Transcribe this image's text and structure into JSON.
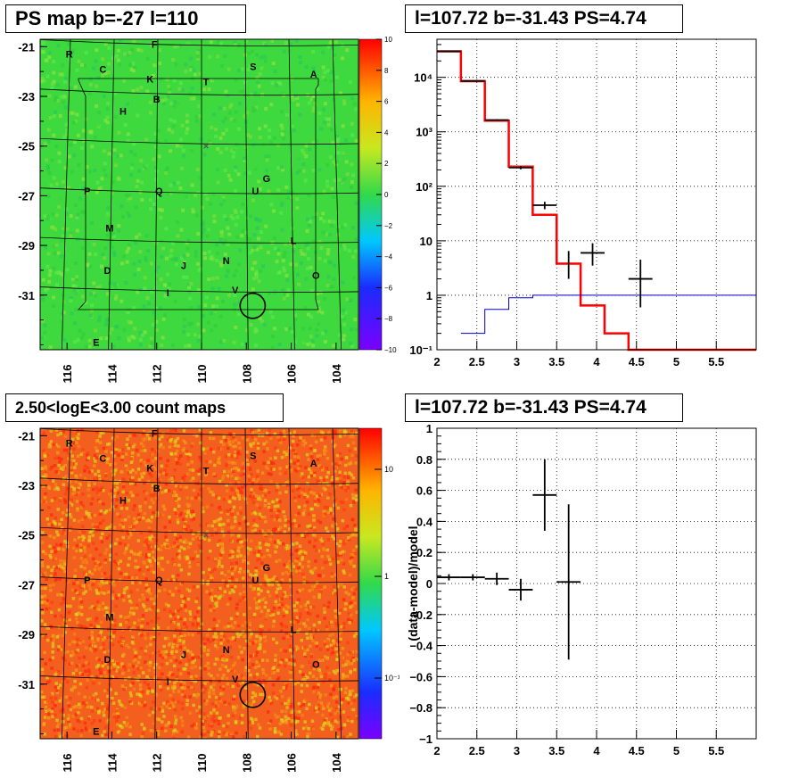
{
  "panels": {
    "ps_map": {
      "title": "PS map b=-27 l=110",
      "y_ticks": [
        "-21",
        "-23",
        "-25",
        "-27",
        "-29",
        "-31"
      ],
      "x_ticks": [
        "116",
        "114",
        "112",
        "110",
        "108",
        "106",
        "104"
      ],
      "colorbar_ticks": [
        "10",
        "8",
        "6",
        "4",
        "2",
        "0",
        "−2",
        "−4",
        "−6",
        "−8",
        "−10"
      ],
      "colors": {
        "background": "#3ed93e",
        "frame": "#000000"
      }
    },
    "count_map": {
      "title": "2.50<logE<3.00 count maps",
      "y_ticks": [
        "-21",
        "-23",
        "-25",
        "-27",
        "-29",
        "-31"
      ],
      "x_ticks": [
        "116",
        "114",
        "112",
        "110",
        "108",
        "106",
        "104"
      ],
      "colorbar_ticks": [
        "10",
        "1",
        "10⁻¹"
      ],
      "colors": {
        "background": "#f25f1e"
      }
    },
    "spectrum": {
      "title": "l=107.72 b=-31.43 PS=4.74"
    },
    "residual": {
      "title": "l=107.72 b=-31.43 PS=4.74",
      "ylabel": "(data-model)/model"
    }
  },
  "source_labels": [
    {
      "t": "R",
      "lon": 115.9,
      "lat": -21.3
    },
    {
      "t": "F",
      "lon": 112.1,
      "lat": -20.9
    },
    {
      "t": "C",
      "lon": 114.4,
      "lat": -21.9
    },
    {
      "t": "K",
      "lon": 112.3,
      "lat": -22.3
    },
    {
      "t": "T",
      "lon": 109.8,
      "lat": -22.4
    },
    {
      "t": "S",
      "lon": 107.7,
      "lat": -21.8
    },
    {
      "t": "A",
      "lon": 105.0,
      "lat": -22.1
    },
    {
      "t": "B",
      "lon": 112.0,
      "lat": -23.1
    },
    {
      "t": "H",
      "lon": 113.5,
      "lat": -23.6
    },
    {
      "t": "×",
      "lon": 109.8,
      "lat": -25.0
    },
    {
      "t": "G",
      "lon": 107.1,
      "lat": -26.3
    },
    {
      "t": "P",
      "lon": 115.1,
      "lat": -26.8
    },
    {
      "t": "Q",
      "lon": 111.9,
      "lat": -26.8
    },
    {
      "t": "U",
      "lon": 107.6,
      "lat": -26.8
    },
    {
      "t": "M",
      "lon": 114.1,
      "lat": -28.3
    },
    {
      "t": "L",
      "lon": 105.9,
      "lat": -28.8
    },
    {
      "t": "J",
      "lon": 110.8,
      "lat": -29.8
    },
    {
      "t": "N",
      "lon": 108.9,
      "lat": -29.6
    },
    {
      "t": "D",
      "lon": 114.2,
      "lat": -30.0
    },
    {
      "t": "O",
      "lon": 104.9,
      "lat": -30.2
    },
    {
      "t": "I",
      "lon": 111.5,
      "lat": -30.9
    },
    {
      "t": "V",
      "lon": 108.5,
      "lat": -30.8
    },
    {
      "t": "E",
      "lon": 114.7,
      "lat": -32.9
    }
  ],
  "chart_data": [
    {
      "type": "heatmap",
      "title": "PS map b=-27 l=110",
      "xlim": [
        117.2,
        103.0
      ],
      "ylim": [
        -33.2,
        -20.7
      ],
      "zlim": [
        -10,
        10
      ],
      "highlight_circle": {
        "lon": 107.72,
        "lat": -31.43
      }
    },
    {
      "type": "line",
      "title": "l=107.72 b=-31.43 PS=4.74",
      "xlim": [
        2,
        6
      ],
      "ylim": [
        0.1,
        50000
      ],
      "y_scale": "log",
      "x_ticks": [
        2,
        2.5,
        3,
        3.5,
        4,
        4.5,
        5,
        5.5
      ],
      "y_tick_labels": [
        "10⁻¹",
        "1",
        "10",
        "10²",
        "10³",
        "10⁴"
      ],
      "series": [
        {
          "color": "#ff0000",
          "step": true,
          "edges": [
            2.0,
            2.3,
            2.6,
            2.9,
            3.2,
            3.5,
            3.8,
            4.1,
            4.4,
            6.0
          ],
          "values": [
            30000,
            8500,
            1600,
            230,
            30,
            3.8,
            0.65,
            0.2,
            0.1
          ]
        },
        {
          "color": "#0000cc",
          "step": true,
          "edges": [
            2.3,
            2.6,
            2.9,
            3.2,
            3.5,
            6.0
          ],
          "values": [
            0.2,
            0.55,
            0.9,
            1.0,
            1.0
          ]
        },
        {
          "color": "#000000",
          "errorbars": true,
          "points": [
            {
              "x": 2.15,
              "y": 30000,
              "xerr": 0.15,
              "ylo": 29000,
              "yhi": 31000
            },
            {
              "x": 2.45,
              "y": 8600,
              "xerr": 0.15,
              "ylo": 8400,
              "yhi": 8800
            },
            {
              "x": 2.75,
              "y": 1650,
              "xerr": 0.15,
              "ylo": 1600,
              "yhi": 1700
            },
            {
              "x": 3.05,
              "y": 220,
              "xerr": 0.15,
              "ylo": 205,
              "yhi": 235
            },
            {
              "x": 3.35,
              "y": 45,
              "xerr": 0.15,
              "ylo": 38,
              "yhi": 52
            },
            {
              "x": 3.65,
              "y": 3.8,
              "xerr": 0.0,
              "ylo": 2.0,
              "yhi": 6.5
            },
            {
              "x": 3.95,
              "y": 6.0,
              "xerr": 0.15,
              "ylo": 3.5,
              "yhi": 9.0
            },
            {
              "x": 4.55,
              "y": 2.0,
              "xerr": 0.15,
              "ylo": 0.6,
              "yhi": 4.5
            }
          ]
        }
      ]
    },
    {
      "type": "heatmap",
      "title": "2.50<logE<3.00 count maps",
      "xlim": [
        117.2,
        103.0
      ],
      "ylim": [
        -33.2,
        -20.7
      ],
      "z_scale": "log",
      "highlight_circle": {
        "lon": 107.72,
        "lat": -31.43
      }
    },
    {
      "type": "scatter",
      "title": "l=107.72 b=-31.43 PS=4.74",
      "ylabel": "(data-model)/model",
      "xlim": [
        2,
        6
      ],
      "ylim": [
        -1,
        1
      ],
      "x_ticks": [
        2,
        2.5,
        3,
        3.5,
        4,
        4.5,
        5,
        5.5
      ],
      "y_ticks": [
        -1,
        -0.8,
        -0.6,
        -0.4,
        -0.2,
        0,
        0.2,
        0.4,
        0.6,
        0.8,
        1
      ],
      "points": [
        {
          "x": 2.15,
          "y": 0.04,
          "xerr": 0.15,
          "yerr": 0.02
        },
        {
          "x": 2.45,
          "y": 0.04,
          "xerr": 0.15,
          "yerr": 0.02
        },
        {
          "x": 2.75,
          "y": 0.03,
          "xerr": 0.15,
          "yerr": 0.04
        },
        {
          "x": 3.05,
          "y": -0.04,
          "xerr": 0.15,
          "yerr": 0.07
        },
        {
          "x": 3.35,
          "y": 0.57,
          "xerr": 0.15,
          "yerr": 0.23
        },
        {
          "x": 3.65,
          "y": 0.01,
          "xerr": 0.15,
          "yerr": 0.5
        }
      ]
    }
  ]
}
